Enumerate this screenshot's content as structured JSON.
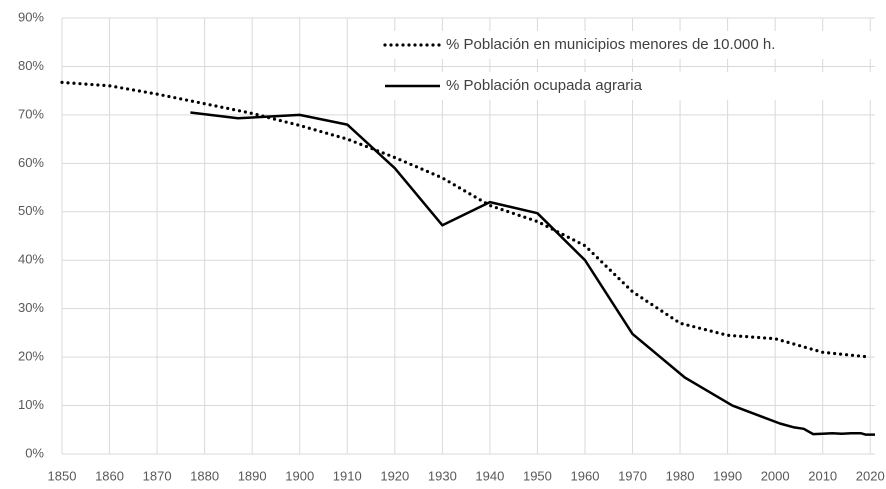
{
  "chart_data": {
    "type": "line",
    "series": [
      {
        "name": "% Población en municipios menores de 10.000 h.",
        "color": "#000000",
        "dash": "dotted",
        "x": [
          1850,
          1860,
          1870,
          1880,
          1890,
          1900,
          1910,
          1920,
          1930,
          1940,
          1950,
          1960,
          1970,
          1980,
          1990,
          2000,
          2010,
          2020
        ],
        "values": [
          76.7,
          76,
          74.3,
          72.3,
          70.3,
          67.8,
          65,
          61.2,
          57,
          51.3,
          48,
          43,
          33.5,
          27,
          24.5,
          23.8,
          21,
          20
        ]
      },
      {
        "name": "% Población ocupada agraria",
        "color": "#000000",
        "dash": "solid",
        "x": [
          1877,
          1887,
          1900,
          1910,
          1920,
          1930,
          1940,
          1950,
          1960,
          1970,
          1981,
          1991,
          2001,
          2004,
          2006,
          2008,
          2010,
          2012,
          2014,
          2016,
          2018,
          2019,
          2021
        ],
        "values": [
          70.5,
          69.3,
          70,
          68,
          59,
          47.2,
          52,
          49.7,
          40,
          24.8,
          15.8,
          10,
          6.3,
          5.5,
          5.2,
          4.1,
          4.2,
          4.3,
          4.2,
          4.3,
          4.3,
          4.0,
          4.0
        ]
      }
    ],
    "xlim": [
      1850,
      2021
    ],
    "xticks": [
      1850,
      1860,
      1870,
      1880,
      1890,
      1900,
      1910,
      1920,
      1930,
      1940,
      1950,
      1960,
      1970,
      1980,
      1990,
      2000,
      2010,
      2020
    ],
    "ylim": [
      0,
      90
    ],
    "yticks": [
      {
        "value": 0,
        "label": "0%"
      },
      {
        "value": 10,
        "label": "10%"
      },
      {
        "value": 20,
        "label": "20%"
      },
      {
        "value": 30,
        "label": "30%"
      },
      {
        "value": 40,
        "label": "40%"
      },
      {
        "value": 50,
        "label": "50%"
      },
      {
        "value": 60,
        "label": "60%"
      },
      {
        "value": 70,
        "label": "70%"
      },
      {
        "value": 80,
        "label": "80%"
      },
      {
        "value": 90,
        "label": "90%"
      }
    ],
    "grid": true,
    "legend": "top-right"
  }
}
